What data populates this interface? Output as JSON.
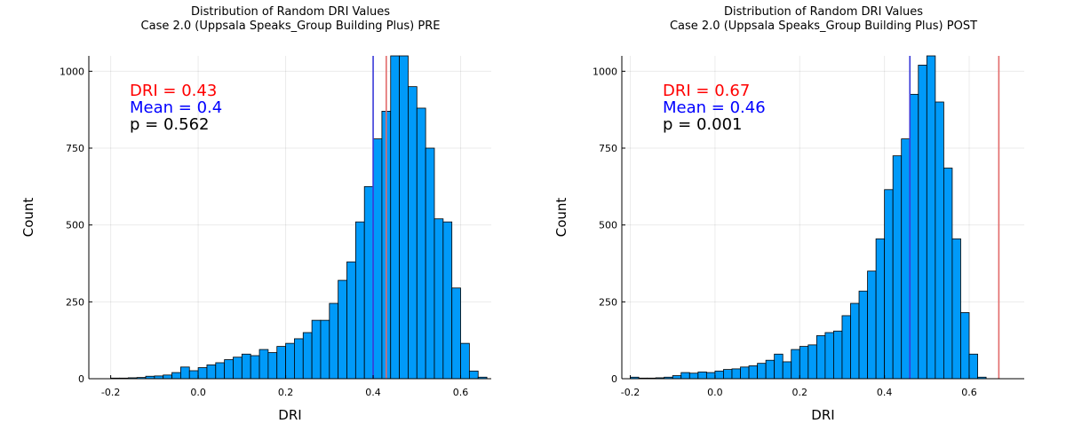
{
  "chart_data": [
    {
      "type": "histogram",
      "title": "Distribution of Random DRI Values",
      "subtitle": "Case 2.0 (Uppsala Speaks_Group Building Plus) PRE",
      "xlabel": "DRI",
      "ylabel": "Count",
      "xlim": [
        -0.25,
        0.67
      ],
      "ylim": [
        0,
        1050
      ],
      "xticks": [
        -0.2,
        0.0,
        0.2,
        0.4,
        0.6
      ],
      "xtick_labels": [
        "-0.2",
        "0.0",
        "0.2",
        "0.4",
        "0.6"
      ],
      "yticks": [
        0,
        250,
        500,
        750,
        1000
      ],
      "ytick_labels": [
        "0",
        "250",
        "500",
        "750",
        "1000"
      ],
      "grid": true,
      "legend": "none",
      "bin_width": 0.02,
      "bin_start": -0.2,
      "counts": [
        2,
        2,
        3,
        4,
        8,
        9,
        12,
        20,
        38,
        26,
        36,
        45,
        52,
        62,
        70,
        80,
        75,
        95,
        85,
        105,
        115,
        130,
        150,
        190,
        190,
        245,
        320,
        380,
        510,
        625,
        780,
        870,
        1050,
        1050,
        950,
        880,
        750,
        520,
        510,
        295,
        115,
        25,
        5
      ],
      "color": "#009af9",
      "vlines": [
        {
          "x": 0.4,
          "color": "#3a3ad8"
        },
        {
          "x": 0.43,
          "color": "#e26b6b"
        }
      ],
      "annotations": [
        {
          "text": "DRI = 0.43",
          "color": "#ff0000"
        },
        {
          "text": "Mean = 0.4",
          "color": "#0000ff"
        },
        {
          "text": "p = 0.562",
          "color": "#000000"
        }
      ]
    },
    {
      "type": "histogram",
      "title": "Distribution of Random DRI Values",
      "subtitle": "Case 2.0 (Uppsala Speaks_Group Building Plus) POST",
      "xlabel": "DRI",
      "ylabel": "Count",
      "xlim": [
        -0.22,
        0.73
      ],
      "ylim": [
        0,
        1050
      ],
      "xticks": [
        -0.2,
        0.0,
        0.2,
        0.4,
        0.6
      ],
      "xtick_labels": [
        "-0.2",
        "0.0",
        "0.2",
        "0.4",
        "0.6"
      ],
      "yticks": [
        0,
        250,
        500,
        750,
        1000
      ],
      "ytick_labels": [
        "0",
        "250",
        "500",
        "750",
        "1000"
      ],
      "grid": true,
      "legend": "none",
      "bin_width": 0.02,
      "bin_start": -0.2,
      "counts": [
        5,
        2,
        2,
        3,
        5,
        10,
        20,
        18,
        22,
        20,
        25,
        30,
        32,
        38,
        42,
        50,
        60,
        80,
        55,
        95,
        105,
        110,
        140,
        150,
        155,
        205,
        245,
        285,
        350,
        455,
        615,
        725,
        780,
        925,
        1020,
        1050,
        900,
        685,
        455,
        215,
        80,
        5
      ],
      "color": "#009af9",
      "vlines": [
        {
          "x": 0.46,
          "color": "#3a3ad8"
        },
        {
          "x": 0.67,
          "color": "#e26b6b"
        }
      ],
      "annotations": [
        {
          "text": "DRI = 0.67",
          "color": "#ff0000"
        },
        {
          "text": "Mean = 0.46",
          "color": "#0000ff"
        },
        {
          "text": "p = 0.001",
          "color": "#000000"
        }
      ]
    }
  ]
}
